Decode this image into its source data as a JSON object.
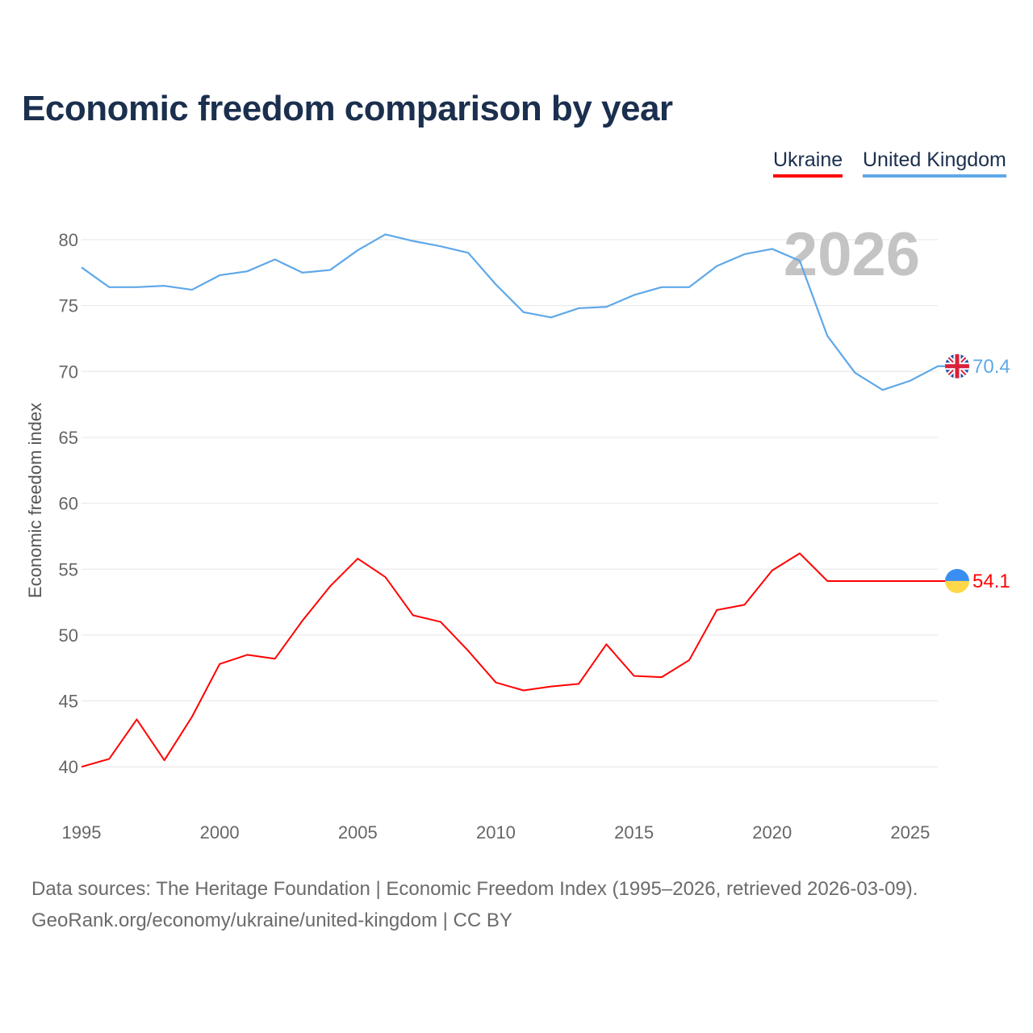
{
  "chart_data": {
    "type": "line",
    "title": "Economic freedom comparison by year",
    "xlabel": "",
    "ylabel": "Economic freedom index",
    "xlim": [
      1995,
      2026
    ],
    "ylim": [
      37,
      82
    ],
    "x_ticks": [
      "1995",
      "2000",
      "2005",
      "2010",
      "2015",
      "2020",
      "2025"
    ],
    "y_ticks": [
      "40",
      "45",
      "50",
      "55",
      "60",
      "65",
      "70",
      "75",
      "80"
    ],
    "grid": true,
    "legend_placement": "top-right",
    "year_watermark": "2026",
    "x": [
      1995,
      1996,
      1997,
      1998,
      1999,
      2000,
      2001,
      2002,
      2003,
      2004,
      2005,
      2006,
      2007,
      2008,
      2009,
      2010,
      2011,
      2012,
      2013,
      2014,
      2015,
      2016,
      2017,
      2018,
      2019,
      2020,
      2021,
      2022,
      2023,
      2024,
      2025,
      2026
    ],
    "series": [
      {
        "name": "Ukraine",
        "color": "#ff0000",
        "end_label": "54.1",
        "values": [
          40.0,
          40.6,
          43.6,
          40.5,
          43.8,
          47.8,
          48.5,
          48.2,
          51.1,
          53.7,
          55.8,
          54.4,
          51.5,
          51.0,
          48.8,
          46.4,
          45.8,
          46.1,
          46.3,
          49.3,
          46.9,
          46.8,
          48.1,
          51.9,
          52.3,
          54.9,
          56.2,
          54.1,
          54.1,
          54.1,
          54.1,
          54.1
        ]
      },
      {
        "name": "United Kingdom",
        "color": "#5fa8e8",
        "end_label": "70.4",
        "values": [
          77.9,
          76.4,
          76.4,
          76.5,
          76.2,
          77.3,
          77.6,
          78.5,
          77.5,
          77.7,
          79.2,
          80.4,
          79.9,
          79.5,
          79.0,
          76.6,
          74.5,
          74.1,
          74.8,
          74.9,
          75.8,
          76.4,
          76.4,
          78.0,
          78.9,
          79.3,
          78.4,
          72.7,
          69.9,
          68.6,
          69.3,
          70.4
        ]
      }
    ]
  },
  "footer": {
    "line1": "Data sources: The Heritage Foundation | Economic Freedom Index (1995–2026, retrieved 2026-03-09).",
    "line2": "GeoRank.org/economy/ukraine/united-kingdom | CC BY"
  }
}
